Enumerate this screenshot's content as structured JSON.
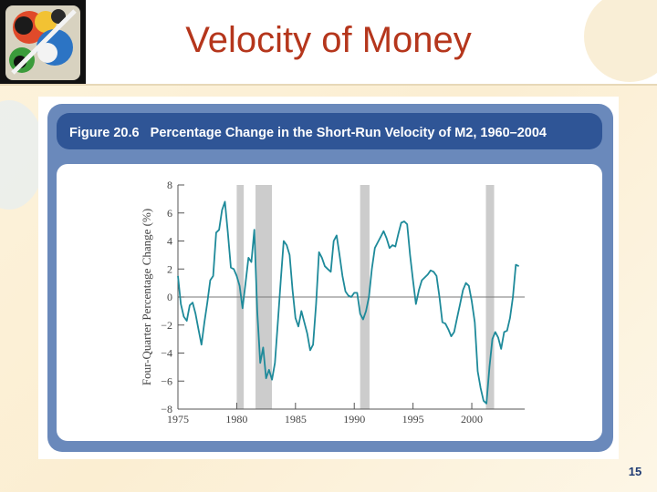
{
  "slide": {
    "title": "Velocity of Money",
    "page_number": "15"
  },
  "colors": {
    "title": "#b5361c",
    "frame": "#6a89bb",
    "header_band": "#2f5596",
    "line": "#1e8a9a",
    "recession": "#cccccc"
  },
  "chart_data": {
    "type": "line",
    "title": "Figure 20.6   Percentage Change in the Short-Run Velocity of M2, 1960–2004",
    "xlabel": "",
    "ylabel": "Four-Quarter Percentage Change (%)",
    "xlim": [
      1975,
      2004.5
    ],
    "ylim": [
      -8,
      8
    ],
    "x_ticks": [
      1975,
      1980,
      1985,
      1990,
      1995,
      2000
    ],
    "y_ticks": [
      8,
      6,
      4,
      2,
      0,
      -2,
      -4,
      -6,
      -8
    ],
    "y_tick_labels": [
      "8",
      "6",
      "4",
      "2",
      "0",
      "−2",
      "−4",
      "−6",
      "−8"
    ],
    "grid": false,
    "legend": "none",
    "recession_bands": [
      [
        1980.0,
        1980.6
      ],
      [
        1981.6,
        1983.0
      ],
      [
        1990.5,
        1991.3
      ],
      [
        2001.2,
        2001.9
      ]
    ],
    "series": [
      {
        "values": [
          [
            1975.0,
            1.5
          ],
          [
            1975.25,
            -0.5
          ],
          [
            1975.5,
            -1.4
          ],
          [
            1975.75,
            -1.7
          ],
          [
            1976.0,
            -0.6
          ],
          [
            1976.25,
            -0.4
          ],
          [
            1976.5,
            -1.2
          ],
          [
            1976.75,
            -2.3
          ],
          [
            1977.0,
            -3.4
          ],
          [
            1977.25,
            -1.8
          ],
          [
            1977.5,
            -0.4
          ],
          [
            1977.75,
            1.2
          ],
          [
            1978.0,
            1.5
          ],
          [
            1978.25,
            4.6
          ],
          [
            1978.5,
            4.8
          ],
          [
            1978.75,
            6.2
          ],
          [
            1979.0,
            6.8
          ],
          [
            1979.25,
            4.6
          ],
          [
            1979.5,
            2.1
          ],
          [
            1979.75,
            2.0
          ],
          [
            1980.0,
            1.5
          ],
          [
            1980.25,
            0.8
          ],
          [
            1980.5,
            -0.8
          ],
          [
            1980.75,
            1.0
          ],
          [
            1981.0,
            2.8
          ],
          [
            1981.25,
            2.5
          ],
          [
            1981.5,
            4.8
          ],
          [
            1981.75,
            -1.0
          ],
          [
            1982.0,
            -4.7
          ],
          [
            1982.25,
            -3.6
          ],
          [
            1982.5,
            -5.8
          ],
          [
            1982.75,
            -5.2
          ],
          [
            1983.0,
            -5.9
          ],
          [
            1983.25,
            -4.7
          ],
          [
            1983.5,
            -1.8
          ],
          [
            1983.75,
            1.2
          ],
          [
            1984.0,
            4.0
          ],
          [
            1984.25,
            3.7
          ],
          [
            1984.5,
            3.0
          ],
          [
            1984.75,
            0.5
          ],
          [
            1985.0,
            -1.5
          ],
          [
            1985.25,
            -2.1
          ],
          [
            1985.5,
            -1.0
          ],
          [
            1985.75,
            -1.8
          ],
          [
            1986.0,
            -2.6
          ],
          [
            1986.25,
            -3.8
          ],
          [
            1986.5,
            -3.4
          ],
          [
            1986.75,
            -0.5
          ],
          [
            1987.0,
            3.2
          ],
          [
            1987.25,
            2.8
          ],
          [
            1987.5,
            2.2
          ],
          [
            1987.75,
            2.0
          ],
          [
            1988.0,
            1.8
          ],
          [
            1988.25,
            4.0
          ],
          [
            1988.5,
            4.4
          ],
          [
            1988.75,
            3.0
          ],
          [
            1989.0,
            1.5
          ],
          [
            1989.25,
            0.4
          ],
          [
            1989.5,
            0.1
          ],
          [
            1989.75,
            0.0
          ],
          [
            1990.0,
            0.3
          ],
          [
            1990.25,
            0.3
          ],
          [
            1990.5,
            -1.2
          ],
          [
            1990.75,
            -1.6
          ],
          [
            1991.0,
            -1.0
          ],
          [
            1991.25,
            0.0
          ],
          [
            1991.5,
            2.0
          ],
          [
            1991.75,
            3.5
          ],
          [
            1992.0,
            3.9
          ],
          [
            1992.25,
            4.3
          ],
          [
            1992.5,
            4.7
          ],
          [
            1992.75,
            4.2
          ],
          [
            1993.0,
            3.5
          ],
          [
            1993.25,
            3.7
          ],
          [
            1993.5,
            3.6
          ],
          [
            1993.75,
            4.5
          ],
          [
            1994.0,
            5.3
          ],
          [
            1994.25,
            5.4
          ],
          [
            1994.5,
            5.2
          ],
          [
            1994.75,
            3.0
          ],
          [
            1995.0,
            1.2
          ],
          [
            1995.25,
            -0.5
          ],
          [
            1995.5,
            0.5
          ],
          [
            1995.75,
            1.2
          ],
          [
            1996.0,
            1.4
          ],
          [
            1996.25,
            1.6
          ],
          [
            1996.5,
            1.9
          ],
          [
            1996.75,
            1.8
          ],
          [
            1997.0,
            1.5
          ],
          [
            1997.25,
            0.0
          ],
          [
            1997.5,
            -1.8
          ],
          [
            1997.75,
            -1.9
          ],
          [
            1998.0,
            -2.3
          ],
          [
            1998.25,
            -2.8
          ],
          [
            1998.5,
            -2.5
          ],
          [
            1998.75,
            -1.5
          ],
          [
            1999.0,
            -0.5
          ],
          [
            1999.25,
            0.5
          ],
          [
            1999.5,
            1.0
          ],
          [
            1999.75,
            0.8
          ],
          [
            2000.0,
            -0.3
          ],
          [
            2000.25,
            -1.8
          ],
          [
            2000.5,
            -5.3
          ],
          [
            2000.75,
            -6.5
          ],
          [
            2001.0,
            -7.4
          ],
          [
            2001.25,
            -7.6
          ],
          [
            2001.5,
            -5.0
          ],
          [
            2001.75,
            -3.0
          ],
          [
            2002.0,
            -2.5
          ],
          [
            2002.25,
            -2.9
          ],
          [
            2002.5,
            -3.7
          ],
          [
            2002.75,
            -2.5
          ],
          [
            2003.0,
            -2.4
          ],
          [
            2003.25,
            -1.5
          ],
          [
            2003.5,
            0.0
          ],
          [
            2003.75,
            2.3
          ],
          [
            2004.0,
            2.2
          ]
        ]
      }
    ]
  }
}
